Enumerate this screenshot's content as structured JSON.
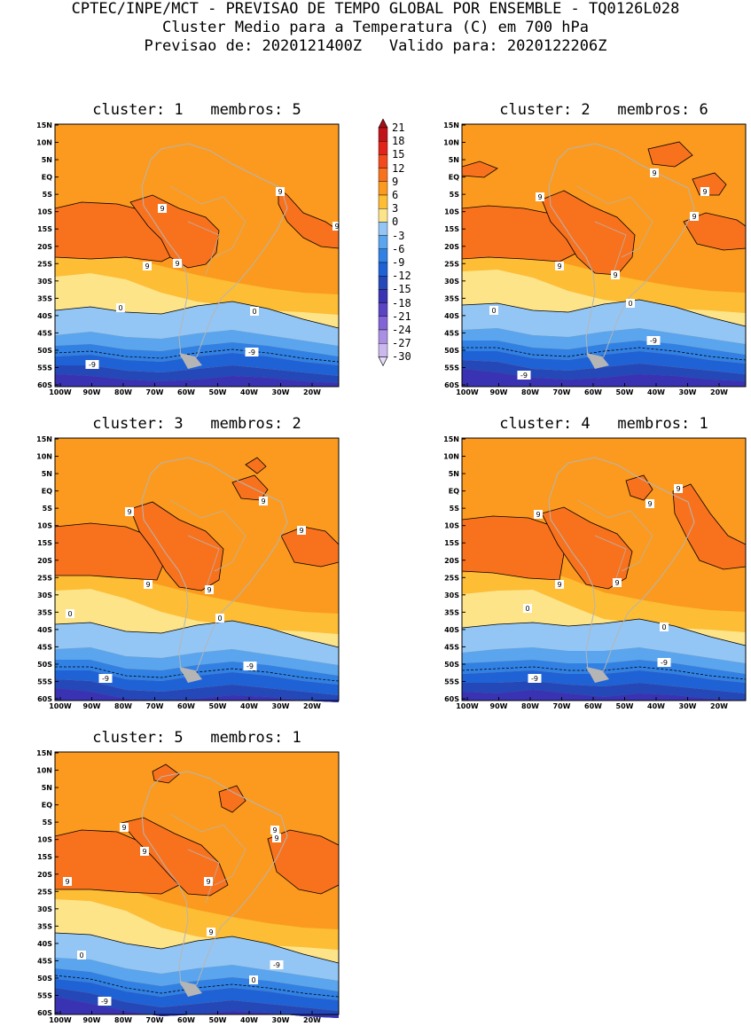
{
  "header": {
    "line1": "CPTEC/INPE/MCT - PREVISAO DE TEMPO GLOBAL POR ENSEMBLE - TQ0126L028",
    "line2": "Cluster Medio para a Temperatura (C) em 700 hPa",
    "line3": "Previsao de: 2020121400Z   Valido para: 2020122206Z"
  },
  "lat_ticks": [
    "15N",
    "10N",
    "5N",
    "EQ",
    "5S",
    "10S",
    "15S",
    "20S",
    "25S",
    "30S",
    "35S",
    "40S",
    "45S",
    "50S",
    "55S",
    "60S"
  ],
  "lon_ticks": [
    "100W",
    "90W",
    "80W",
    "70W",
    "60W",
    "50W",
    "40W",
    "30W",
    "20W"
  ],
  "colorbar": {
    "labels": [
      "21",
      "18",
      "15",
      "12",
      "9",
      "6",
      "3",
      "0",
      "-3",
      "-6",
      "-9",
      "-12",
      "-15",
      "-18",
      "-21",
      "-24",
      "-27",
      "-30"
    ],
    "colors": [
      "#a50f15",
      "#c0141a",
      "#e2231a",
      "#f34a1c",
      "#f8721e",
      "#fb9a1e",
      "#fdbd35",
      "#fde488",
      "#93c6f5",
      "#5aa5ee",
      "#3181e4",
      "#1f62d6",
      "#2448b8",
      "#3933b3",
      "#5b44c4",
      "#8364d6",
      "#aa8fe4",
      "#cbb8ef",
      "#e6dcf8"
    ]
  },
  "clusters": [
    {
      "title": "cluster: 1   membros: 5",
      "labels": [
        "9",
        "9",
        "9",
        "9",
        "9",
        "0",
        "0",
        "-9",
        "-9"
      ]
    },
    {
      "title": "cluster: 2   membros: 6",
      "labels": [
        "9",
        "9",
        "9",
        "9",
        "9",
        "9",
        "0",
        "0",
        "-9",
        "-9"
      ]
    },
    {
      "title": "cluster: 3   membros: 2",
      "labels": [
        "9",
        "9",
        "9",
        "9",
        "9",
        "0",
        "0",
        "-9",
        "-9"
      ]
    },
    {
      "title": "cluster: 4   membros: 1",
      "labels": [
        "9",
        "9",
        "9",
        "9",
        "9",
        "0",
        "0",
        "-9",
        "-9"
      ]
    },
    {
      "title": "cluster: 5   membros: 1",
      "labels": [
        "9",
        "9",
        "9",
        "9",
        "9",
        "9",
        "9",
        "0",
        "0",
        "-9",
        "-9"
      ]
    }
  ]
}
